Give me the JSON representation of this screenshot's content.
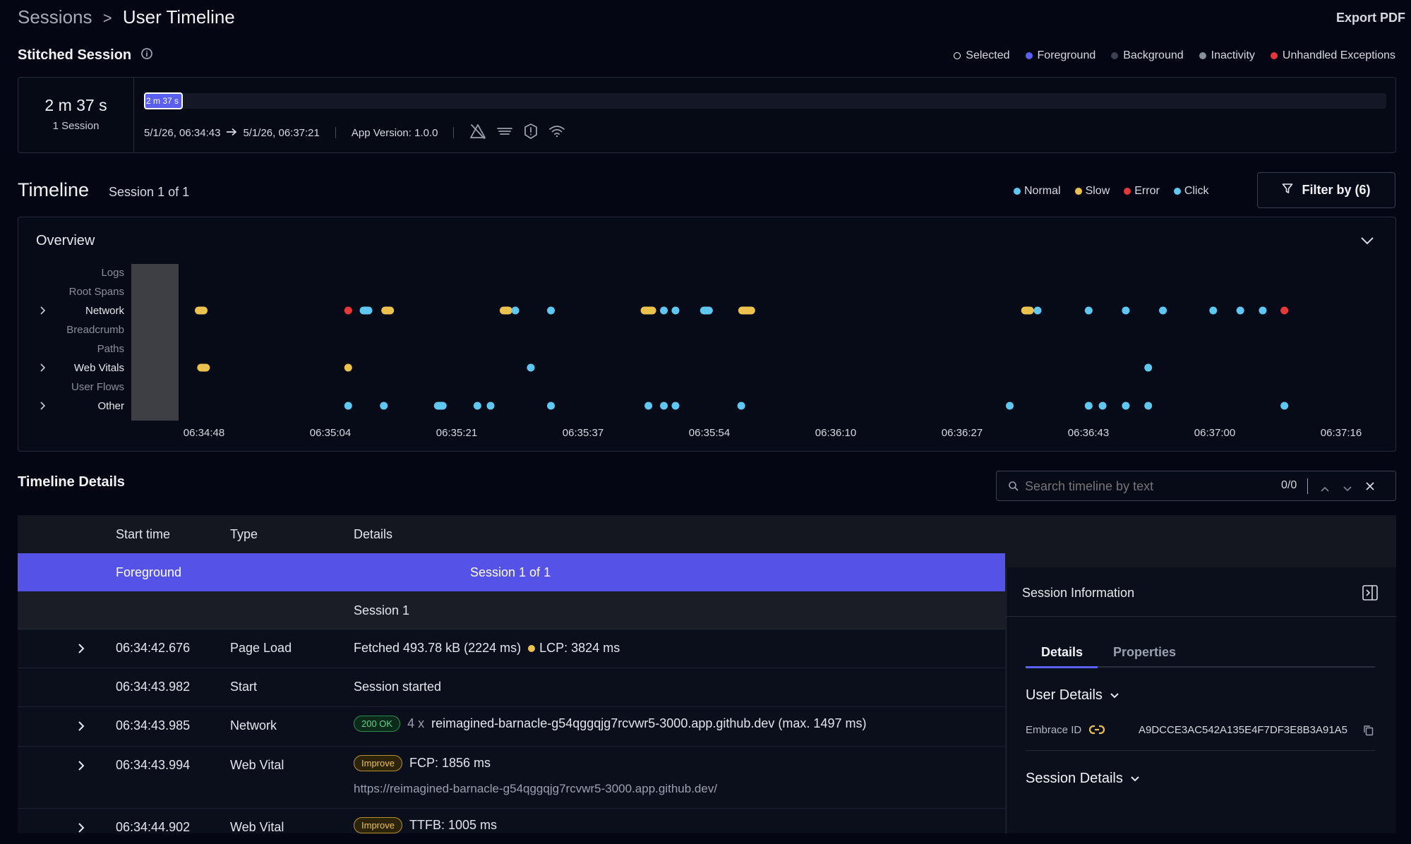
{
  "breadcrumb": {
    "root": "Sessions",
    "sep": ">",
    "current": "User Timeline"
  },
  "export_label": "Export PDF",
  "stitched": {
    "title": "Stitched Session",
    "legend": [
      {
        "label": "Selected",
        "color": "#ffffff",
        "hollow": true
      },
      {
        "label": "Foreground",
        "color": "#5b5ff0"
      },
      {
        "label": "Background",
        "color": "#3b4154"
      },
      {
        "label": "Inactivity",
        "color": "#8a8f9c"
      },
      {
        "label": "Unhandled Exceptions",
        "color": "#e5383b"
      }
    ],
    "duration": "2 m 37 s",
    "session_count": "1 Session",
    "bar_label": "2 m 37 s",
    "range_start": "5/1/26, 06:34:43",
    "range_end": "5/1/26, 06:37:21",
    "app_version": "App Version: 1.0.0"
  },
  "timeline": {
    "title": "Timeline",
    "session_label": "Session 1 of 1",
    "legend": [
      {
        "label": "Normal",
        "color": "#5ec8f2"
      },
      {
        "label": "Slow",
        "color": "#ecc24f"
      },
      {
        "label": "Error",
        "color": "#e5383b"
      },
      {
        "label": "Click",
        "color": "#5ec8f2"
      }
    ],
    "filter_label": "Filter by (6)"
  },
  "overview": {
    "title": "Overview",
    "rows": [
      {
        "label": "Logs",
        "expandable": false
      },
      {
        "label": "Root Spans",
        "expandable": false
      },
      {
        "label": "Network",
        "expandable": true
      },
      {
        "label": "Breadcrumb",
        "expandable": false
      },
      {
        "label": "Paths",
        "expandable": false
      },
      {
        "label": "Web Vitals",
        "expandable": true
      },
      {
        "label": "User Flows",
        "expandable": false
      },
      {
        "label": "Other",
        "expandable": true
      }
    ],
    "ticks": [
      "06:34:48",
      "06:35:04",
      "06:35:21",
      "06:35:37",
      "06:35:54",
      "06:36:10",
      "06:36:27",
      "06:36:43",
      "06:37:00",
      "06:37:16"
    ],
    "events": [
      {
        "row": 2,
        "t": 4,
        "kind": "slow",
        "w": 1
      },
      {
        "row": 2,
        "t": 23,
        "kind": "error"
      },
      {
        "row": 2,
        "t": 25.3,
        "kind": "normal",
        "w": 1
      },
      {
        "row": 2,
        "t": 28.1,
        "kind": "slow",
        "w": 1
      },
      {
        "row": 2,
        "t": 43.4,
        "kind": "slow",
        "w": 1
      },
      {
        "row": 2,
        "t": 44.6,
        "kind": "normal"
      },
      {
        "row": 2,
        "t": 49.2,
        "kind": "normal"
      },
      {
        "row": 2,
        "t": 61.8,
        "kind": "slow",
        "w": 1.4
      },
      {
        "row": 2,
        "t": 63.8,
        "kind": "normal"
      },
      {
        "row": 2,
        "t": 65.3,
        "kind": "normal"
      },
      {
        "row": 2,
        "t": 69.3,
        "kind": "normal",
        "w": 1
      },
      {
        "row": 2,
        "t": 74.5,
        "kind": "slow",
        "w": 1.6
      },
      {
        "row": 2,
        "t": 110.8,
        "kind": "slow",
        "w": 1
      },
      {
        "row": 2,
        "t": 112.1,
        "kind": "normal"
      },
      {
        "row": 2,
        "t": 118.7,
        "kind": "normal"
      },
      {
        "row": 2,
        "t": 123.5,
        "kind": "normal"
      },
      {
        "row": 2,
        "t": 128.3,
        "kind": "normal"
      },
      {
        "row": 2,
        "t": 134.8,
        "kind": "normal"
      },
      {
        "row": 2,
        "t": 138.3,
        "kind": "normal"
      },
      {
        "row": 2,
        "t": 141.2,
        "kind": "normal"
      },
      {
        "row": 2,
        "t": 144,
        "kind": "error"
      },
      {
        "row": 5,
        "t": 4.3,
        "kind": "slow",
        "w": 1
      },
      {
        "row": 5,
        "t": 23,
        "kind": "slow"
      },
      {
        "row": 5,
        "t": 46.6,
        "kind": "normal"
      },
      {
        "row": 5,
        "t": 126.4,
        "kind": "normal"
      },
      {
        "row": 7,
        "t": 23,
        "kind": "normal"
      },
      {
        "row": 7,
        "t": 27.6,
        "kind": "normal"
      },
      {
        "row": 7,
        "t": 34.9,
        "kind": "normal",
        "w": 1
      },
      {
        "row": 7,
        "t": 39.7,
        "kind": "normal"
      },
      {
        "row": 7,
        "t": 41.4,
        "kind": "normal"
      },
      {
        "row": 7,
        "t": 49.2,
        "kind": "normal"
      },
      {
        "row": 7,
        "t": 61.8,
        "kind": "normal"
      },
      {
        "row": 7,
        "t": 63.8,
        "kind": "normal"
      },
      {
        "row": 7,
        "t": 65.3,
        "kind": "normal"
      },
      {
        "row": 7,
        "t": 73.8,
        "kind": "normal"
      },
      {
        "row": 7,
        "t": 108.5,
        "kind": "normal"
      },
      {
        "row": 7,
        "t": 118.7,
        "kind": "normal"
      },
      {
        "row": 7,
        "t": 120.5,
        "kind": "normal"
      },
      {
        "row": 7,
        "t": 123.5,
        "kind": "normal"
      },
      {
        "row": 7,
        "t": 126.4,
        "kind": "normal"
      },
      {
        "row": 7,
        "t": 144,
        "kind": "normal"
      }
    ]
  },
  "details": {
    "title": "Timeline Details",
    "search_placeholder": "Search timeline by text",
    "search_count": "0/0",
    "columns": {
      "start": "Start time",
      "type": "Type",
      "details": "Details"
    },
    "foreground_label": "Foreground",
    "foreground_session": "Session 1 of 1",
    "session_row": "Session 1",
    "rows": [
      {
        "time": "06:34:42.676",
        "type": "Page Load",
        "detail": "Fetched 493.78 kB (2224 ms)",
        "extra": "LCP: 3824 ms",
        "expand": true
      },
      {
        "time": "06:34:43.982",
        "type": "Start",
        "detail": "Session started",
        "expand": false
      },
      {
        "time": "06:34:43.985",
        "type": "Network",
        "badge": "200 OK",
        "count": "4 x",
        "detail": "reimagined-barnacle-g54qggqjg7rcvwr5-3000.app.github.dev (max. 1497 ms)",
        "expand": true
      },
      {
        "time": "06:34:43.994",
        "type": "Web Vital",
        "badge": "Improve",
        "detail": "FCP: 1856 ms",
        "sub": "https://reimagined-barnacle-g54qggqjg7rcvwr5-3000.app.github.dev/",
        "expand": true
      },
      {
        "time": "06:34:44.902",
        "type": "Web Vital",
        "badge": "Improve",
        "detail": "TTFB: 1005 ms",
        "expand": true
      }
    ]
  },
  "session_info": {
    "title": "Session Information",
    "tabs": [
      "Details",
      "Properties"
    ],
    "user_details": "User Details",
    "embrace_label": "Embrace ID",
    "embrace_id": "A9DCCE3AC542A135E4F7DF3E8B3A91A5",
    "session_details": "Session Details"
  }
}
